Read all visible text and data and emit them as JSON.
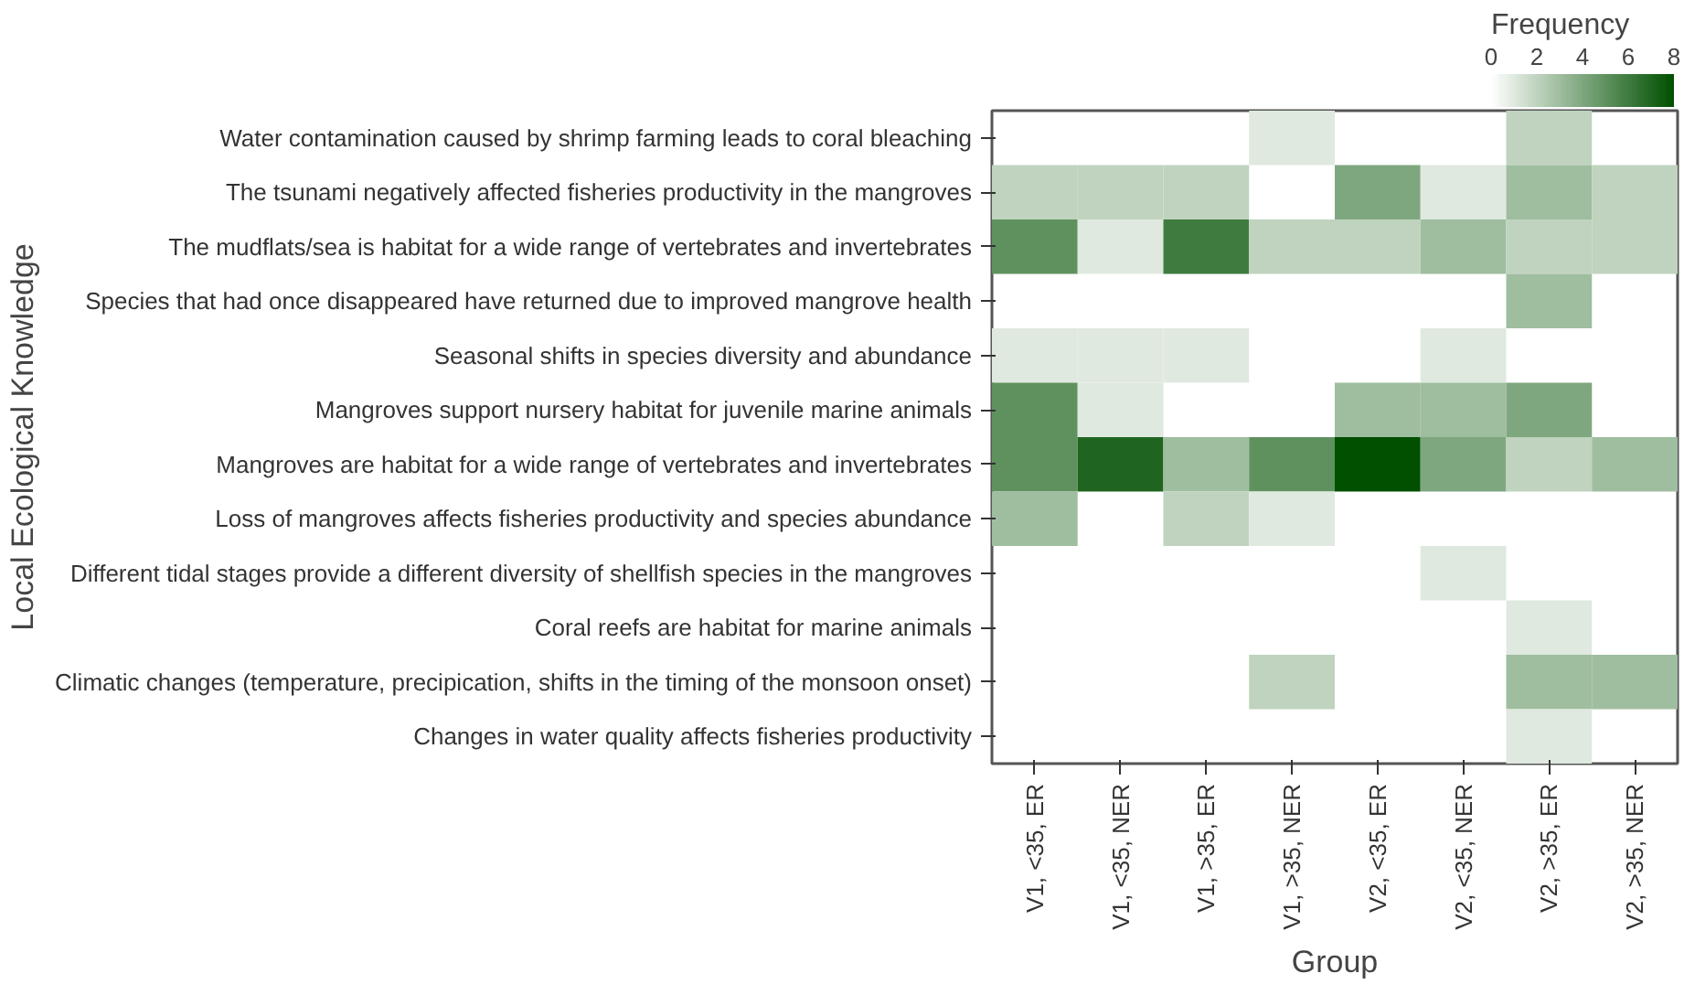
{
  "chart_data": {
    "type": "heatmap",
    "xlabel": "Group",
    "ylabel": "Local Ecological Knowledge",
    "clabel": "Frequency",
    "categories": [
      "V1, <35, ER",
      "V1, <35, NER",
      "V1, >35, ER",
      "V1, >35, NER",
      "V2, <35, ER",
      "V2, <35, NER",
      "V2, >35, ER",
      "V2, >35, NER"
    ],
    "y_categories": [
      "Water contamination caused by shrimp farming leads to coral bleaching",
      "The tsunami negatively affected fisheries productivity in the mangroves",
      "The mudflats/sea is habitat for a wide range of vertebrates and invertebrates",
      "Species that had once disappeared have returned due to improved mangrove health",
      "Seasonal shifts in species diversity and abundance",
      "Mangroves support nursery habitat for juvenile marine animals",
      "Mangroves are habitat for a wide range of vertebrates and invertebrates",
      "Loss of mangroves affects fisheries productivity and species abundance",
      "Different tidal stages provide a different diversity of shellfish species in the mangroves",
      "Coral reefs are habitat for marine animals",
      "Climatic changes (temperature, precipication, shifts in the timing of the monsoon onset)",
      "Changes in water quality affects fisheries productivity"
    ],
    "cells": [
      [
        null,
        null,
        null,
        1,
        null,
        null,
        2,
        null
      ],
      [
        2,
        2,
        2,
        null,
        4,
        1,
        3,
        2
      ],
      [
        5,
        1,
        6,
        2,
        2,
        3,
        2,
        2
      ],
      [
        null,
        null,
        null,
        null,
        null,
        null,
        3,
        null
      ],
      [
        1,
        1,
        1,
        null,
        null,
        1,
        null,
        null
      ],
      [
        5,
        1,
        null,
        null,
        3,
        3,
        4,
        null
      ],
      [
        5,
        7,
        3,
        5,
        8,
        4,
        2,
        3
      ],
      [
        3,
        null,
        2,
        1,
        null,
        null,
        null,
        null
      ],
      [
        null,
        null,
        null,
        null,
        null,
        1,
        null,
        null
      ],
      [
        null,
        null,
        null,
        null,
        null,
        null,
        1,
        null
      ],
      [
        null,
        null,
        null,
        2,
        null,
        null,
        3,
        3
      ],
      [
        null,
        null,
        null,
        null,
        null,
        null,
        1,
        null
      ]
    ],
    "clim": [
      0,
      8
    ],
    "cticks": [
      0,
      2,
      4,
      6,
      8
    ],
    "grid": false
  }
}
